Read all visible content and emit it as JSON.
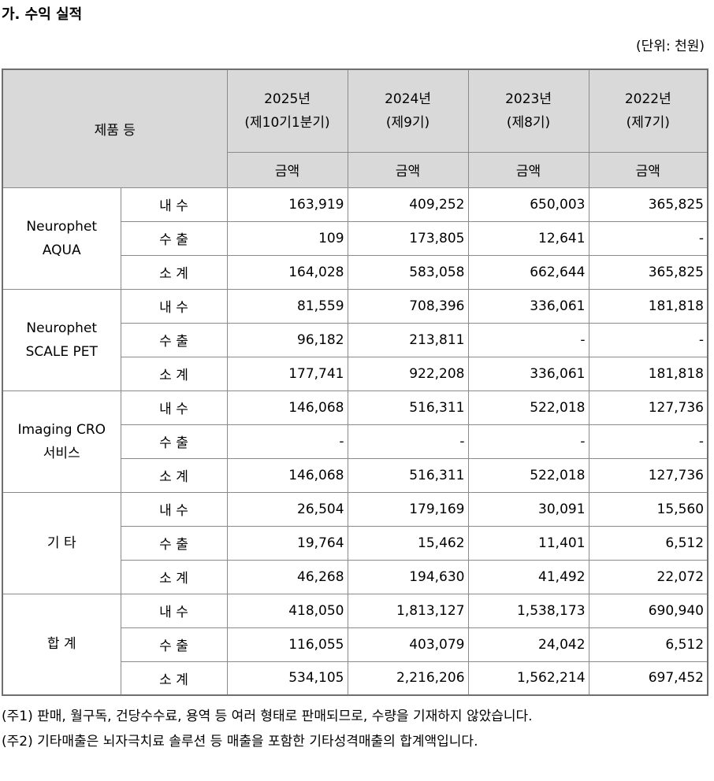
{
  "header": {
    "title": "가. 수익 실적",
    "unit": "(단위: 천원)"
  },
  "table": {
    "product_header": "제품 등",
    "periods": [
      {
        "year": "2025년",
        "term": "(제10기1분기)"
      },
      {
        "year": "2024년",
        "term": "(제9기)"
      },
      {
        "year": "2023년",
        "term": "(제8기)"
      },
      {
        "year": "2022년",
        "term": "(제7기)"
      }
    ],
    "amount_labels": [
      "금액",
      "금액",
      "금액",
      "금액"
    ],
    "groups": [
      {
        "name": [
          "Neurophet",
          "AQUA"
        ],
        "rows": [
          {
            "label": "내 수",
            "values": [
              "163,919",
              "409,252",
              "650,003",
              "365,825"
            ]
          },
          {
            "label": "수 출",
            "values": [
              "109",
              "173,805",
              "12,641",
              "-"
            ]
          },
          {
            "label": "소 계",
            "values": [
              "164,028",
              "583,058",
              "662,644",
              "365,825"
            ]
          }
        ]
      },
      {
        "name": [
          "Neurophet",
          "SCALE PET"
        ],
        "rows": [
          {
            "label": "내 수",
            "values": [
              "81,559",
              "708,396",
              "336,061",
              "181,818"
            ]
          },
          {
            "label": "수 출",
            "values": [
              "96,182",
              "213,811",
              "-",
              "-"
            ]
          },
          {
            "label": "소 계",
            "values": [
              "177,741",
              "922,208",
              "336,061",
              "181,818"
            ]
          }
        ]
      },
      {
        "name": [
          "Imaging CRO",
          "서비스"
        ],
        "rows": [
          {
            "label": "내 수",
            "values": [
              "146,068",
              "516,311",
              "522,018",
              "127,736"
            ]
          },
          {
            "label": "수 출",
            "values": [
              "-",
              "-",
              "-",
              "-"
            ]
          },
          {
            "label": "소 계",
            "values": [
              "146,068",
              "516,311",
              "522,018",
              "127,736"
            ]
          }
        ]
      },
      {
        "name": [
          "기 타"
        ],
        "rows": [
          {
            "label": "내 수",
            "values": [
              "26,504",
              "179,169",
              "30,091",
              "15,560"
            ]
          },
          {
            "label": "수 출",
            "values": [
              "19,764",
              "15,462",
              "11,401",
              "6,512"
            ]
          },
          {
            "label": "소 계",
            "values": [
              "46,268",
              "194,630",
              "41,492",
              "22,072"
            ]
          }
        ]
      },
      {
        "name": [
          "합 계"
        ],
        "rows": [
          {
            "label": "내 수",
            "values": [
              "418,050",
              "1,813,127",
              "1,538,173",
              "690,940"
            ]
          },
          {
            "label": "수 출",
            "values": [
              "116,055",
              "403,079",
              "24,042",
              "6,512"
            ]
          },
          {
            "label": "소 계",
            "values": [
              "534,105",
              "2,216,206",
              "1,562,214",
              "697,452"
            ]
          }
        ]
      }
    ]
  },
  "notes": [
    "(주1) 판매, 월구독, 건당수수료, 용역 등 여러 형태로 판매되므로, 수량을 기재하지 않았습니다.",
    "(주2) 기타매출은 뇌자극치료 솔루션 등 매출을 포함한 기타성격매출의 합계액입니다."
  ]
}
